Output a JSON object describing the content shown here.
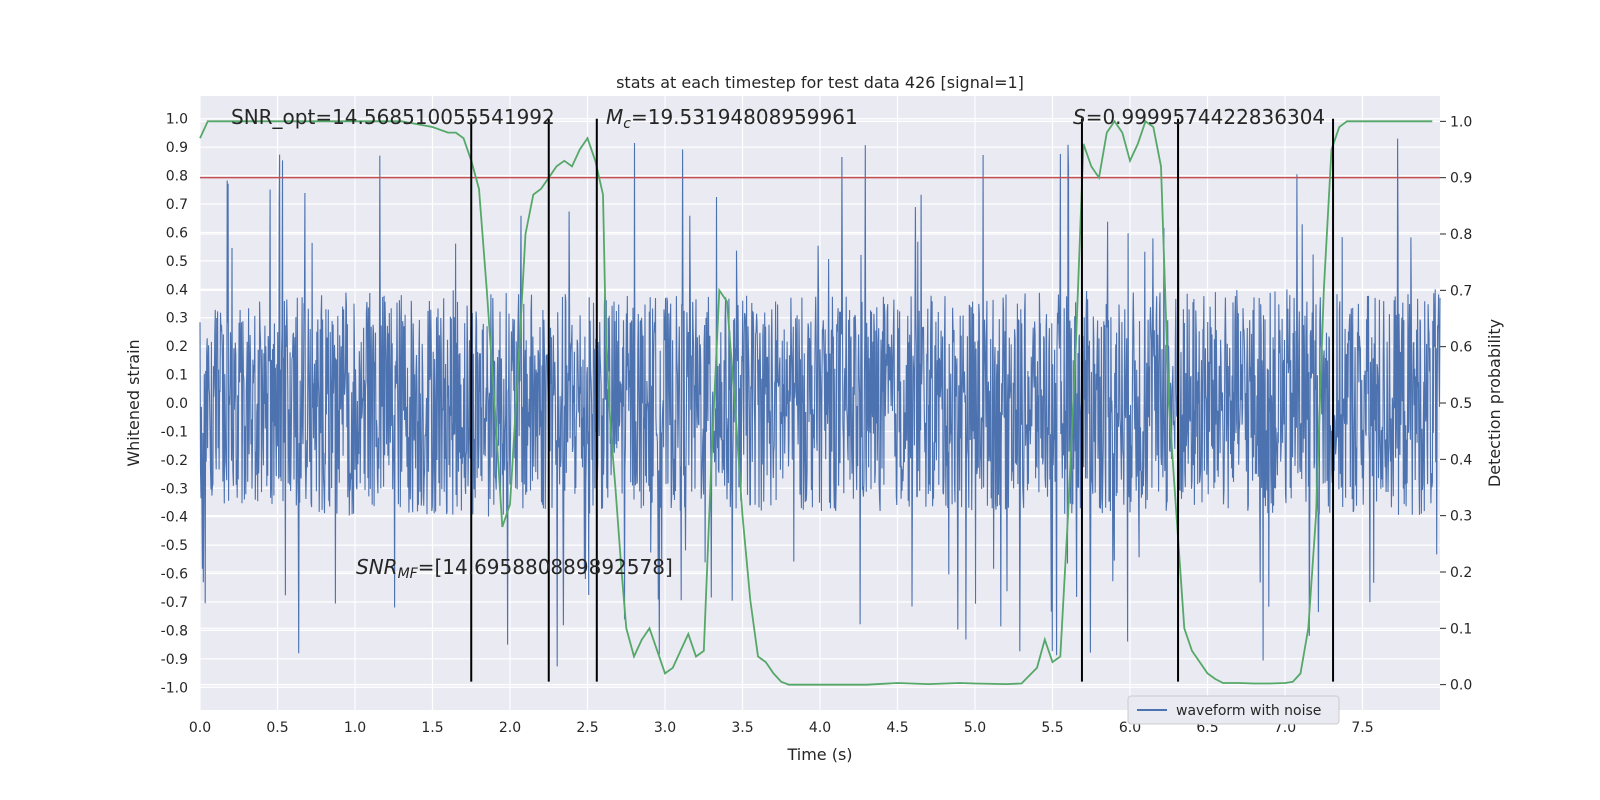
{
  "chart_data": {
    "type": "line",
    "title": "stats at each timestep for test data 426 [signal=1]",
    "xlabel": "Time (s)",
    "ylabel": "Whitened strain",
    "y2label": "Detection probability",
    "xlim": [
      0.0,
      8.0
    ],
    "ylim": [
      -1.08,
      1.08
    ],
    "y2lim": [
      -0.045,
      1.045
    ],
    "grid": true,
    "legend_position": "lower-right",
    "x_ticks": [
      "0.0",
      "0.5",
      "1.0",
      "1.5",
      "2.0",
      "2.5",
      "3.0",
      "3.5",
      "4.0",
      "4.5",
      "5.0",
      "5.5",
      "6.0",
      "6.5",
      "7.0",
      "7.5"
    ],
    "y_ticks": [
      "1.0",
      "0.9",
      "0.8",
      "0.7",
      "0.6",
      "0.5",
      "0.4",
      "0.3",
      "0.2",
      "0.1",
      "0.0",
      "-0.1",
      "-0.2",
      "-0.3",
      "-0.4",
      "-0.5",
      "-0.6",
      "-0.7",
      "-0.8",
      "-0.9",
      "-1.0"
    ],
    "y2_ticks": [
      "1.0",
      "0.9",
      "0.8",
      "0.7",
      "0.6",
      "0.5",
      "0.4",
      "0.3",
      "0.2",
      "0.1",
      "0.0"
    ],
    "annotations": {
      "snr_opt": "SNR_opt=14.568510055541992",
      "mc_symbol": "M",
      "mc_sub": "c",
      "mc_value": "=19.53194808959961",
      "s_symbol": "S",
      "s_value": "=0.9999574422836304",
      "snr_mf_symbol": "SNR",
      "snr_mf_sub": "MF",
      "snr_mf_value": "=[14.695880889892578]"
    },
    "series": [
      {
        "name": "waveform with noise",
        "color": "#4c72b0",
        "axis": "left",
        "kind": "noise-strain",
        "envelope_x": [
          0.0,
          1.0,
          2.0,
          3.0,
          4.0,
          5.0,
          6.0,
          7.0,
          8.0
        ],
        "envelope_typical": [
          0.35,
          0.4,
          0.4,
          0.38,
          0.38,
          0.38,
          0.4,
          0.4,
          0.4
        ],
        "peak_max": 0.93,
        "peak_min": -0.98
      },
      {
        "color": "#55a868",
        "axis": "right",
        "x": [
          0.0,
          0.05,
          0.15,
          0.3,
          0.5,
          0.7,
          0.9,
          1.1,
          1.3,
          1.5,
          1.6,
          1.65,
          1.7,
          1.75,
          1.8,
          1.85,
          1.9,
          1.95,
          2.0,
          2.05,
          2.1,
          2.15,
          2.2,
          2.25,
          2.3,
          2.35,
          2.4,
          2.45,
          2.5,
          2.55,
          2.6,
          2.62,
          2.65,
          2.68,
          2.72,
          2.75,
          2.8,
          2.85,
          2.9,
          2.95,
          3.0,
          3.05,
          3.1,
          3.15,
          3.2,
          3.25,
          3.3,
          3.35,
          3.4,
          3.45,
          3.5,
          3.55,
          3.6,
          3.65,
          3.7,
          3.75,
          3.8,
          3.85,
          4.0,
          4.3,
          4.5,
          4.7,
          4.9,
          5.0,
          5.2,
          5.3,
          5.4,
          5.45,
          5.5,
          5.55,
          5.6,
          5.65,
          5.7,
          5.75,
          5.8,
          5.85,
          5.9,
          5.95,
          6.0,
          6.05,
          6.1,
          6.15,
          6.2,
          6.25,
          6.3,
          6.35,
          6.4,
          6.5,
          6.55,
          6.6,
          6.7,
          6.8,
          6.9,
          7.0,
          7.05,
          7.1,
          7.15,
          7.2,
          7.25,
          7.3,
          7.35,
          7.4,
          7.45,
          7.5,
          7.6,
          7.7,
          7.8,
          7.95
        ],
        "values": [
          0.97,
          1.0,
          1.0,
          1.0,
          1.0,
          1.0,
          1.0,
          1.0,
          1.0,
          0.99,
          0.98,
          0.98,
          0.97,
          0.93,
          0.88,
          0.7,
          0.5,
          0.28,
          0.32,
          0.55,
          0.8,
          0.87,
          0.88,
          0.9,
          0.92,
          0.93,
          0.92,
          0.95,
          0.97,
          0.93,
          0.87,
          0.6,
          0.45,
          0.35,
          0.2,
          0.1,
          0.05,
          0.08,
          0.1,
          0.06,
          0.02,
          0.03,
          0.06,
          0.09,
          0.05,
          0.06,
          0.4,
          0.7,
          0.68,
          0.5,
          0.3,
          0.15,
          0.05,
          0.04,
          0.02,
          0.005,
          0.0,
          0.0,
          0.0,
          0.0,
          0.003,
          0.001,
          0.003,
          0.002,
          0.001,
          0.002,
          0.03,
          0.08,
          0.04,
          0.05,
          0.3,
          0.6,
          0.96,
          0.92,
          0.9,
          0.98,
          1.0,
          0.98,
          0.93,
          0.96,
          1.0,
          0.99,
          0.92,
          0.5,
          0.3,
          0.1,
          0.06,
          0.02,
          0.01,
          0.003,
          0.003,
          0.002,
          0.002,
          0.003,
          0.005,
          0.02,
          0.1,
          0.3,
          0.7,
          0.95,
          0.99,
          1.0,
          1.0,
          1.0,
          1.0,
          1.0,
          1.0,
          1.0
        ]
      },
      {
        "color": "#c44e52",
        "axis": "right",
        "kind": "threshold",
        "value": 0.9
      }
    ],
    "vertical_lines": [
      1.75,
      2.25,
      2.56,
      5.69,
      6.31,
      7.31
    ],
    "vline_y_top": 1.0,
    "vline_y_bottom": -0.98
  }
}
